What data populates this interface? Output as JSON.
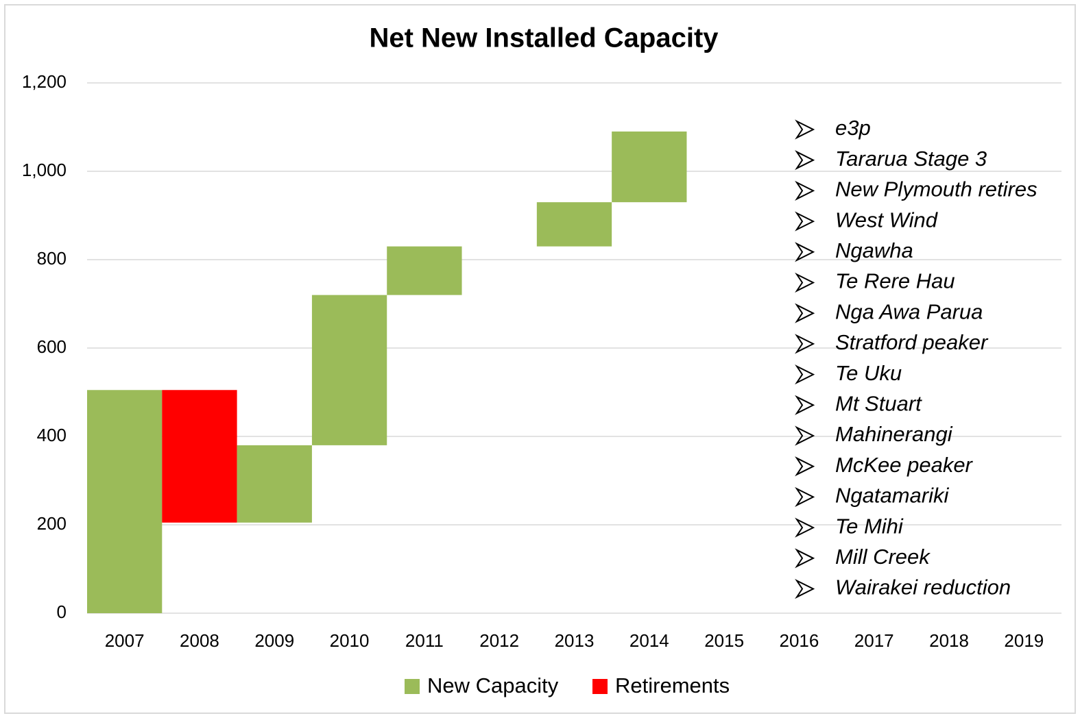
{
  "chart_data": {
    "type": "waterfall",
    "title": "Net New Installed Capacity",
    "categories": [
      "2007",
      "2008",
      "2009",
      "2010",
      "2011",
      "2012",
      "2013",
      "2014",
      "2015",
      "2016",
      "2017",
      "2018",
      "2019"
    ],
    "series": [
      {
        "name": "New Capacity",
        "color": "#9bbb59",
        "values": [
          505,
          null,
          175,
          340,
          110,
          null,
          100,
          160,
          null,
          null,
          null,
          null,
          null
        ]
      },
      {
        "name": "Retirements",
        "color": "#ff0000",
        "values": [
          null,
          -300,
          null,
          null,
          null,
          null,
          null,
          null,
          null,
          null,
          null,
          null,
          null
        ]
      }
    ],
    "ylim": [
      0,
      1200
    ],
    "yticks": [
      0,
      200,
      400,
      600,
      800,
      {
        "value": 1000,
        "label": "1,000"
      },
      {
        "value": 1200,
        "label": "1,200"
      }
    ],
    "grid": true,
    "legend": "bottom",
    "annotations": [
      "e3p",
      "Tararua Stage 3",
      "New Plymouth retires",
      "West Wind",
      "Ngawha",
      "Te Rere Hau",
      "Nga Awa Parua",
      "Stratford peaker",
      "Te Uku",
      "Mt Stuart",
      "Mahinerangi",
      "McKee peaker",
      "Ngatamariki",
      "Te Mihi",
      "Mill Creek",
      "Wairakei reduction"
    ]
  }
}
